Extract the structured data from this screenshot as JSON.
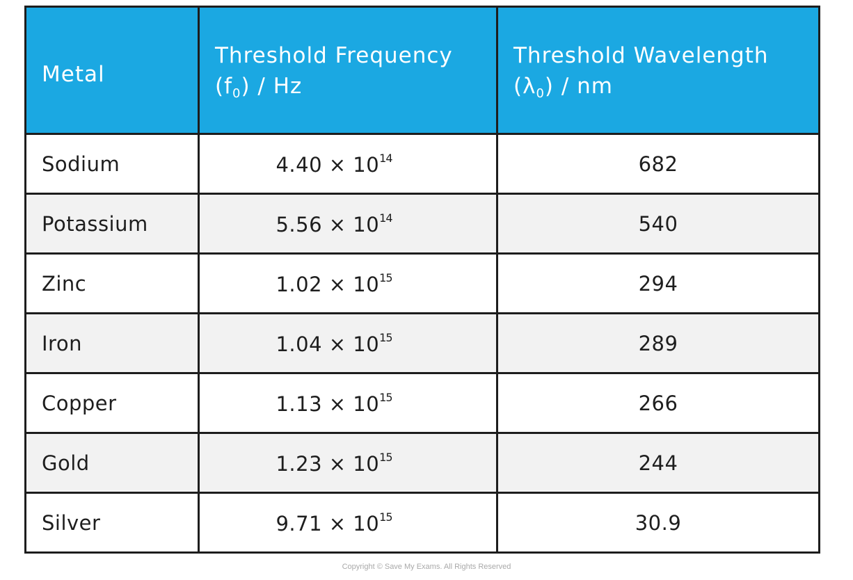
{
  "colors": {
    "header_bg": "#1ba8e2",
    "header_text": "#ffffff",
    "border": "#1d1d1d",
    "alt_row": "#f2f2f2"
  },
  "header": {
    "metal": "Metal",
    "freq_line1": "Threshold Frequency",
    "freq_open": "(f",
    "freq_sub": "0",
    "freq_close": ") / Hz",
    "wave_line1": "Threshold Wavelength",
    "wave_open": "(λ",
    "wave_sub": "0",
    "wave_close": ") / nm"
  },
  "rows": [
    {
      "metal": "Sodium",
      "freq": "4.40 × 10",
      "exp": "14",
      "wave": "682"
    },
    {
      "metal": "Potassium",
      "freq": "5.56 × 10",
      "exp": "14",
      "wave": "540"
    },
    {
      "metal": "Zinc",
      "freq": "1.02 × 10",
      "exp": "15",
      "wave": "294"
    },
    {
      "metal": "Iron",
      "freq": "1.04 × 10",
      "exp": "15",
      "wave": "289"
    },
    {
      "metal": "Copper",
      "freq": "1.13 × 10",
      "exp": "15",
      "wave": "266"
    },
    {
      "metal": "Gold",
      "freq": "1.23 × 10",
      "exp": "15",
      "wave": "244"
    },
    {
      "metal": "Silver",
      "freq": "9.71 × 10",
      "exp": "15",
      "wave": "30.9"
    }
  ],
  "copyright": "Copyright © Save My Exams. All Rights Reserved"
}
